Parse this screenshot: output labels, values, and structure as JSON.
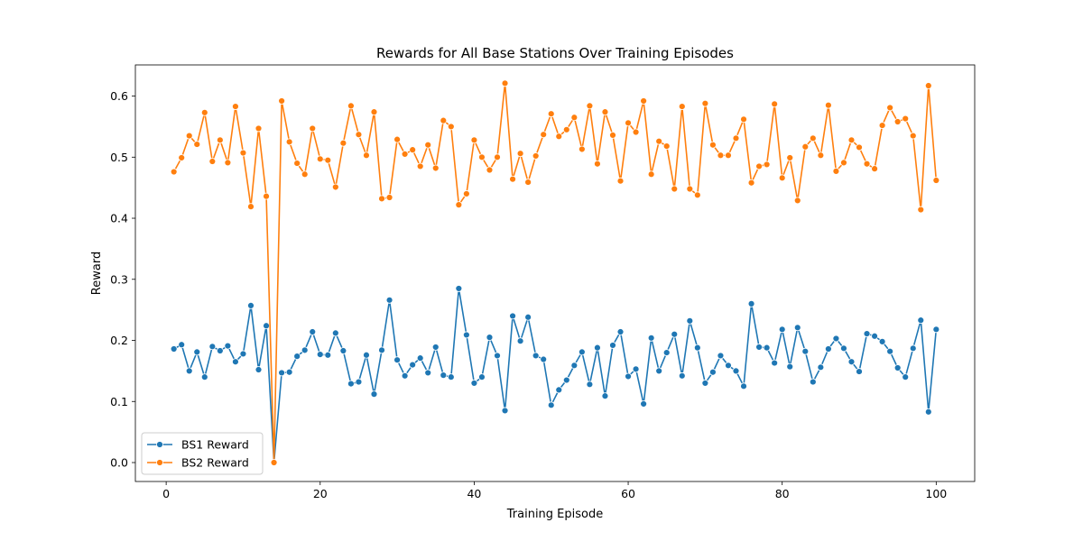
{
  "chart_data": {
    "type": "line",
    "title": "Rewards for All Base Stations Over Training Episodes",
    "xlabel": "Training Episode",
    "ylabel": "Reward",
    "xlim": [
      -4,
      105
    ],
    "ylim": [
      -0.031,
      0.651
    ],
    "xticks": [
      0,
      20,
      40,
      60,
      80,
      100
    ],
    "yticks": [
      0.0,
      0.1,
      0.2,
      0.3,
      0.4,
      0.5,
      0.6
    ],
    "ytick_labels": [
      "0.0",
      "0.1",
      "0.2",
      "0.3",
      "0.4",
      "0.5",
      "0.6"
    ],
    "grid": false,
    "legend_position": "lower-left",
    "x": [
      1,
      2,
      3,
      4,
      5,
      6,
      7,
      8,
      9,
      10,
      11,
      12,
      13,
      14,
      15,
      16,
      17,
      18,
      19,
      20,
      21,
      22,
      23,
      24,
      25,
      26,
      27,
      28,
      29,
      30,
      31,
      32,
      33,
      34,
      35,
      36,
      37,
      38,
      39,
      40,
      41,
      42,
      43,
      44,
      45,
      46,
      47,
      48,
      49,
      50,
      51,
      52,
      53,
      54,
      55,
      56,
      57,
      58,
      59,
      60,
      61,
      62,
      63,
      64,
      65,
      66,
      67,
      68,
      69,
      70,
      71,
      72,
      73,
      74,
      75,
      76,
      77,
      78,
      79,
      80,
      81,
      82,
      83,
      84,
      85,
      86,
      87,
      88,
      89,
      90,
      91,
      92,
      93,
      94,
      95,
      96,
      97,
      98,
      99,
      100
    ],
    "series": [
      {
        "name": "BS1 Reward",
        "color": "#1f77b4",
        "values": [
          0.186,
          0.193,
          0.15,
          0.181,
          0.14,
          0.19,
          0.183,
          0.191,
          0.165,
          0.178,
          0.257,
          0.152,
          0.224,
          0.0,
          0.147,
          0.148,
          0.174,
          0.184,
          0.214,
          0.177,
          0.176,
          0.212,
          0.183,
          0.129,
          0.132,
          0.176,
          0.112,
          0.184,
          0.266,
          0.168,
          0.142,
          0.16,
          0.171,
          0.147,
          0.189,
          0.143,
          0.14,
          0.285,
          0.209,
          0.13,
          0.14,
          0.205,
          0.175,
          0.085,
          0.24,
          0.199,
          0.238,
          0.175,
          0.169,
          0.094,
          0.119,
          0.135,
          0.159,
          0.181,
          0.128,
          0.188,
          0.109,
          0.192,
          0.214,
          0.141,
          0.153,
          0.096,
          0.204,
          0.15,
          0.18,
          0.21,
          0.142,
          0.232,
          0.188,
          0.13,
          0.148,
          0.175,
          0.159,
          0.15,
          0.125,
          0.26,
          0.189,
          0.188,
          0.163,
          0.218,
          0.157,
          0.221,
          0.182,
          0.132,
          0.156,
          0.186,
          0.203,
          0.187,
          0.165,
          0.149,
          0.211,
          0.207,
          0.198,
          0.182,
          0.155,
          0.14,
          0.187,
          0.233,
          0.083,
          0.218
        ]
      },
      {
        "name": "BS2 Reward",
        "color": "#ff7f0e",
        "values": [
          0.476,
          0.499,
          0.535,
          0.521,
          0.573,
          0.493,
          0.528,
          0.491,
          0.583,
          0.507,
          0.419,
          0.547,
          0.436,
          0.0,
          0.592,
          0.525,
          0.49,
          0.472,
          0.547,
          0.497,
          0.495,
          0.451,
          0.523,
          0.584,
          0.537,
          0.503,
          0.574,
          0.432,
          0.434,
          0.529,
          0.505,
          0.512,
          0.485,
          0.52,
          0.482,
          0.56,
          0.55,
          0.422,
          0.44,
          0.528,
          0.5,
          0.479,
          0.5,
          0.621,
          0.464,
          0.506,
          0.459,
          0.502,
          0.537,
          0.571,
          0.534,
          0.545,
          0.565,
          0.513,
          0.584,
          0.489,
          0.574,
          0.536,
          0.461,
          0.556,
          0.541,
          0.592,
          0.472,
          0.526,
          0.518,
          0.448,
          0.583,
          0.448,
          0.438,
          0.588,
          0.52,
          0.503,
          0.503,
          0.531,
          0.562,
          0.458,
          0.485,
          0.488,
          0.587,
          0.466,
          0.499,
          0.429,
          0.517,
          0.531,
          0.503,
          0.585,
          0.477,
          0.491,
          0.528,
          0.516,
          0.489,
          0.481,
          0.552,
          0.581,
          0.558,
          0.563,
          0.535,
          0.414,
          0.617,
          0.462
        ]
      }
    ]
  }
}
